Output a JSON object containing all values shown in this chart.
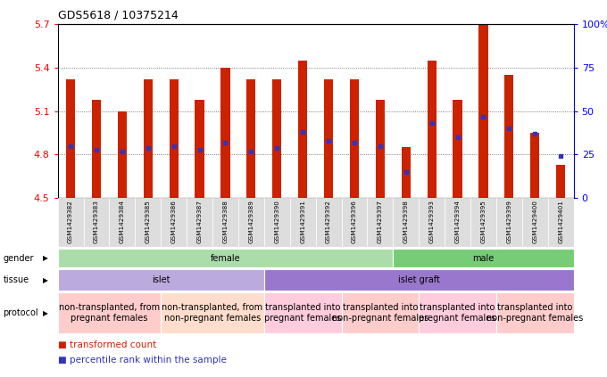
{
  "title": "GDS5618 / 10375214",
  "samples": [
    "GSM1429382",
    "GSM1429383",
    "GSM1429384",
    "GSM1429385",
    "GSM1429386",
    "GSM1429387",
    "GSM1429388",
    "GSM1429389",
    "GSM1429390",
    "GSM1429391",
    "GSM1429392",
    "GSM1429396",
    "GSM1429397",
    "GSM1429398",
    "GSM1429393",
    "GSM1429394",
    "GSM1429395",
    "GSM1429399",
    "GSM1429400",
    "GSM1429401"
  ],
  "red_values": [
    5.32,
    5.18,
    5.1,
    5.32,
    5.32,
    5.18,
    5.4,
    5.32,
    5.32,
    5.45,
    5.32,
    5.32,
    5.18,
    4.85,
    5.45,
    5.18,
    5.7,
    5.35,
    4.95,
    4.73
  ],
  "blue_percentiles": [
    30,
    28,
    27,
    29,
    30,
    28,
    32,
    27,
    29,
    38,
    33,
    32,
    30,
    15,
    43,
    35,
    47,
    40,
    37,
    24
  ],
  "ymin": 4.5,
  "ymax": 5.7,
  "yticks": [
    4.5,
    4.8,
    5.1,
    5.4,
    5.7
  ],
  "ytick_labels": [
    "4.5",
    "4.8",
    "5.1",
    "5.4",
    "5.7"
  ],
  "right_yticks": [
    0,
    25,
    50,
    75,
    100
  ],
  "right_ytick_labels": [
    "0",
    "25",
    "50",
    "75",
    "100%"
  ],
  "bar_color": "#cc2200",
  "blue_color": "#3333bb",
  "gender_groups": [
    {
      "label": "female",
      "start": 0,
      "end": 13,
      "color": "#aaddaa"
    },
    {
      "label": "male",
      "start": 13,
      "end": 20,
      "color": "#77cc77"
    }
  ],
  "tissue_groups": [
    {
      "label": "islet",
      "start": 0,
      "end": 8,
      "color": "#bbaadd"
    },
    {
      "label": "islet graft",
      "start": 8,
      "end": 20,
      "color": "#9977cc"
    }
  ],
  "protocol_groups": [
    {
      "label": "non-transplanted, from\npregnant females",
      "start": 0,
      "end": 4,
      "color": "#ffcccc"
    },
    {
      "label": "non-transplanted, from\nnon-pregnant females",
      "start": 4,
      "end": 8,
      "color": "#ffddcc"
    },
    {
      "label": "transplanted into\npregnant females",
      "start": 8,
      "end": 11,
      "color": "#ffccdd"
    },
    {
      "label": "transplanted into\nnon-pregnant females",
      "start": 11,
      "end": 14,
      "color": "#ffcccc"
    },
    {
      "label": "transplanted into\npregnant females",
      "start": 14,
      "end": 17,
      "color": "#ffccdd"
    },
    {
      "label": "transplanted into\nnon-pregnant females",
      "start": 17,
      "end": 20,
      "color": "#ffcccc"
    }
  ],
  "legend_red": "transformed count",
  "legend_blue": "percentile rank within the sample",
  "bg_color": "#ffffff",
  "cell_bg": "#dddddd",
  "grid_color": "#555555"
}
